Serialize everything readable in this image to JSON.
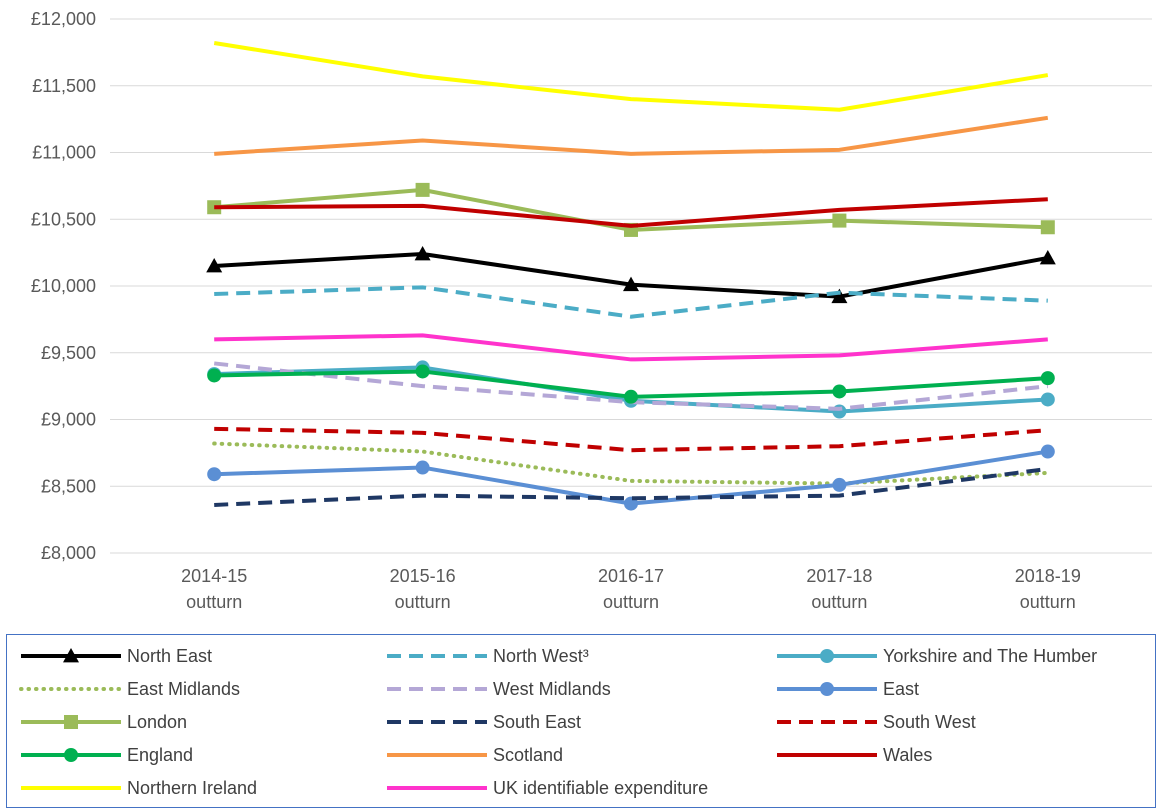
{
  "chart_data": {
    "type": "line",
    "title": "",
    "xlabel": "",
    "ylabel": "",
    "categories": [
      [
        "2014-15",
        "outturn"
      ],
      [
        "2015-16",
        "outturn"
      ],
      [
        "2016-17",
        "outturn"
      ],
      [
        "2017-18",
        "outturn"
      ],
      [
        "2018-19",
        "outturn"
      ]
    ],
    "y_ticks": [
      "£8,000",
      "£8,500",
      "£9,000",
      "£9,500",
      "£10,000",
      "£10,500",
      "£11,000",
      "£11,500",
      "£12,000"
    ],
    "ylim": [
      8000,
      12000
    ],
    "grid": "horizontal",
    "legend_position": "bottom",
    "series": [
      {
        "name": "North East",
        "color": "#000000",
        "style": "solid",
        "marker": "triangle",
        "values": [
          10150,
          10240,
          10010,
          9920,
          10210
        ]
      },
      {
        "name": "North West³",
        "color": "#4bacc6",
        "style": "dashed",
        "marker": "none",
        "values": [
          9940,
          9990,
          9770,
          9950,
          9890
        ]
      },
      {
        "name": "Yorkshire and The Humber",
        "color": "#4bacc6",
        "style": "solid",
        "marker": "circle",
        "values": [
          9340,
          9390,
          9140,
          9060,
          9150
        ]
      },
      {
        "name": "East Midlands",
        "color": "#9bbb59",
        "style": "dotted",
        "marker": "none",
        "values": [
          8820,
          8760,
          8540,
          8520,
          8600
        ]
      },
      {
        "name": "West Midlands",
        "color": "#b4a7d6",
        "style": "dashed",
        "marker": "none",
        "values": [
          9420,
          9250,
          9130,
          9080,
          9250
        ]
      },
      {
        "name": "East",
        "color": "#5b8fd4",
        "style": "solid",
        "marker": "circle",
        "values": [
          8590,
          8640,
          8370,
          8510,
          8760
        ]
      },
      {
        "name": "London",
        "color": "#9bbb59",
        "style": "solid",
        "marker": "square",
        "values": [
          10590,
          10720,
          10420,
          10490,
          10440
        ]
      },
      {
        "name": "South East",
        "color": "#1f3864",
        "style": "dashed",
        "marker": "none",
        "values": [
          8360,
          8430,
          8410,
          8430,
          8630
        ]
      },
      {
        "name": "South West",
        "color": "#c00000",
        "style": "dashed",
        "marker": "none",
        "values": [
          8930,
          8900,
          8770,
          8800,
          8920
        ]
      },
      {
        "name": "England",
        "color": "#00b050",
        "style": "solid",
        "marker": "circle",
        "values": [
          9330,
          9360,
          9170,
          9210,
          9310
        ]
      },
      {
        "name": "Scotland",
        "color": "#f79646",
        "style": "solid",
        "marker": "none",
        "values": [
          10990,
          11090,
          10990,
          11020,
          11260
        ]
      },
      {
        "name": "Wales",
        "color": "#c00000",
        "style": "solid",
        "marker": "none",
        "values": [
          10590,
          10600,
          10450,
          10570,
          10650
        ]
      },
      {
        "name": "Northern Ireland",
        "color": "#ffff00",
        "style": "solid",
        "marker": "none",
        "values": [
          11820,
          11570,
          11400,
          11320,
          11580
        ]
      },
      {
        "name": "UK identifiable expenditure",
        "color": "#ff33cc",
        "style": "solid",
        "marker": "none",
        "values": [
          9600,
          9630,
          9450,
          9480,
          9600
        ]
      }
    ]
  }
}
